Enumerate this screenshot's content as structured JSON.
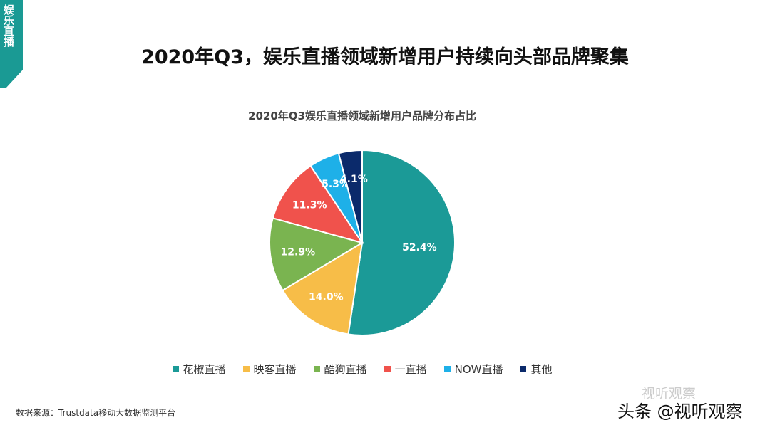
{
  "side_tab": {
    "label": "娱乐直播",
    "color": "#1a9a94"
  },
  "page_title": "2020年Q3，娱乐直播领域新增用户持续向头部品牌聚集",
  "source_note": "数据来源：Trustdata移动大数据监测平台",
  "watermark": {
    "top": "视听观察",
    "bottom": "头条 @视听观察"
  },
  "chart_data": {
    "type": "pie",
    "title": "2020年Q3娱乐直播领域新增用户品牌分布占比",
    "legend_position": "bottom",
    "slices": [
      {
        "name": "花椒直播",
        "value": 52.4,
        "label": "52.4%",
        "color": "#1b9a97"
      },
      {
        "name": "映客直播",
        "value": 14.0,
        "label": "14.0%",
        "color": "#f7bd48"
      },
      {
        "name": "酷狗直播",
        "value": 12.9,
        "label": "12.9%",
        "color": "#7ab450"
      },
      {
        "name": "一直播",
        "value": 11.3,
        "label": "11.3%",
        "color": "#f0524c"
      },
      {
        "name": "NOW直播",
        "value": 5.3,
        "label": "5.3%",
        "color": "#1eb0e8"
      },
      {
        "name": "其他",
        "value": 4.1,
        "label": "4.1%",
        "color": "#0b2a6b"
      }
    ]
  }
}
